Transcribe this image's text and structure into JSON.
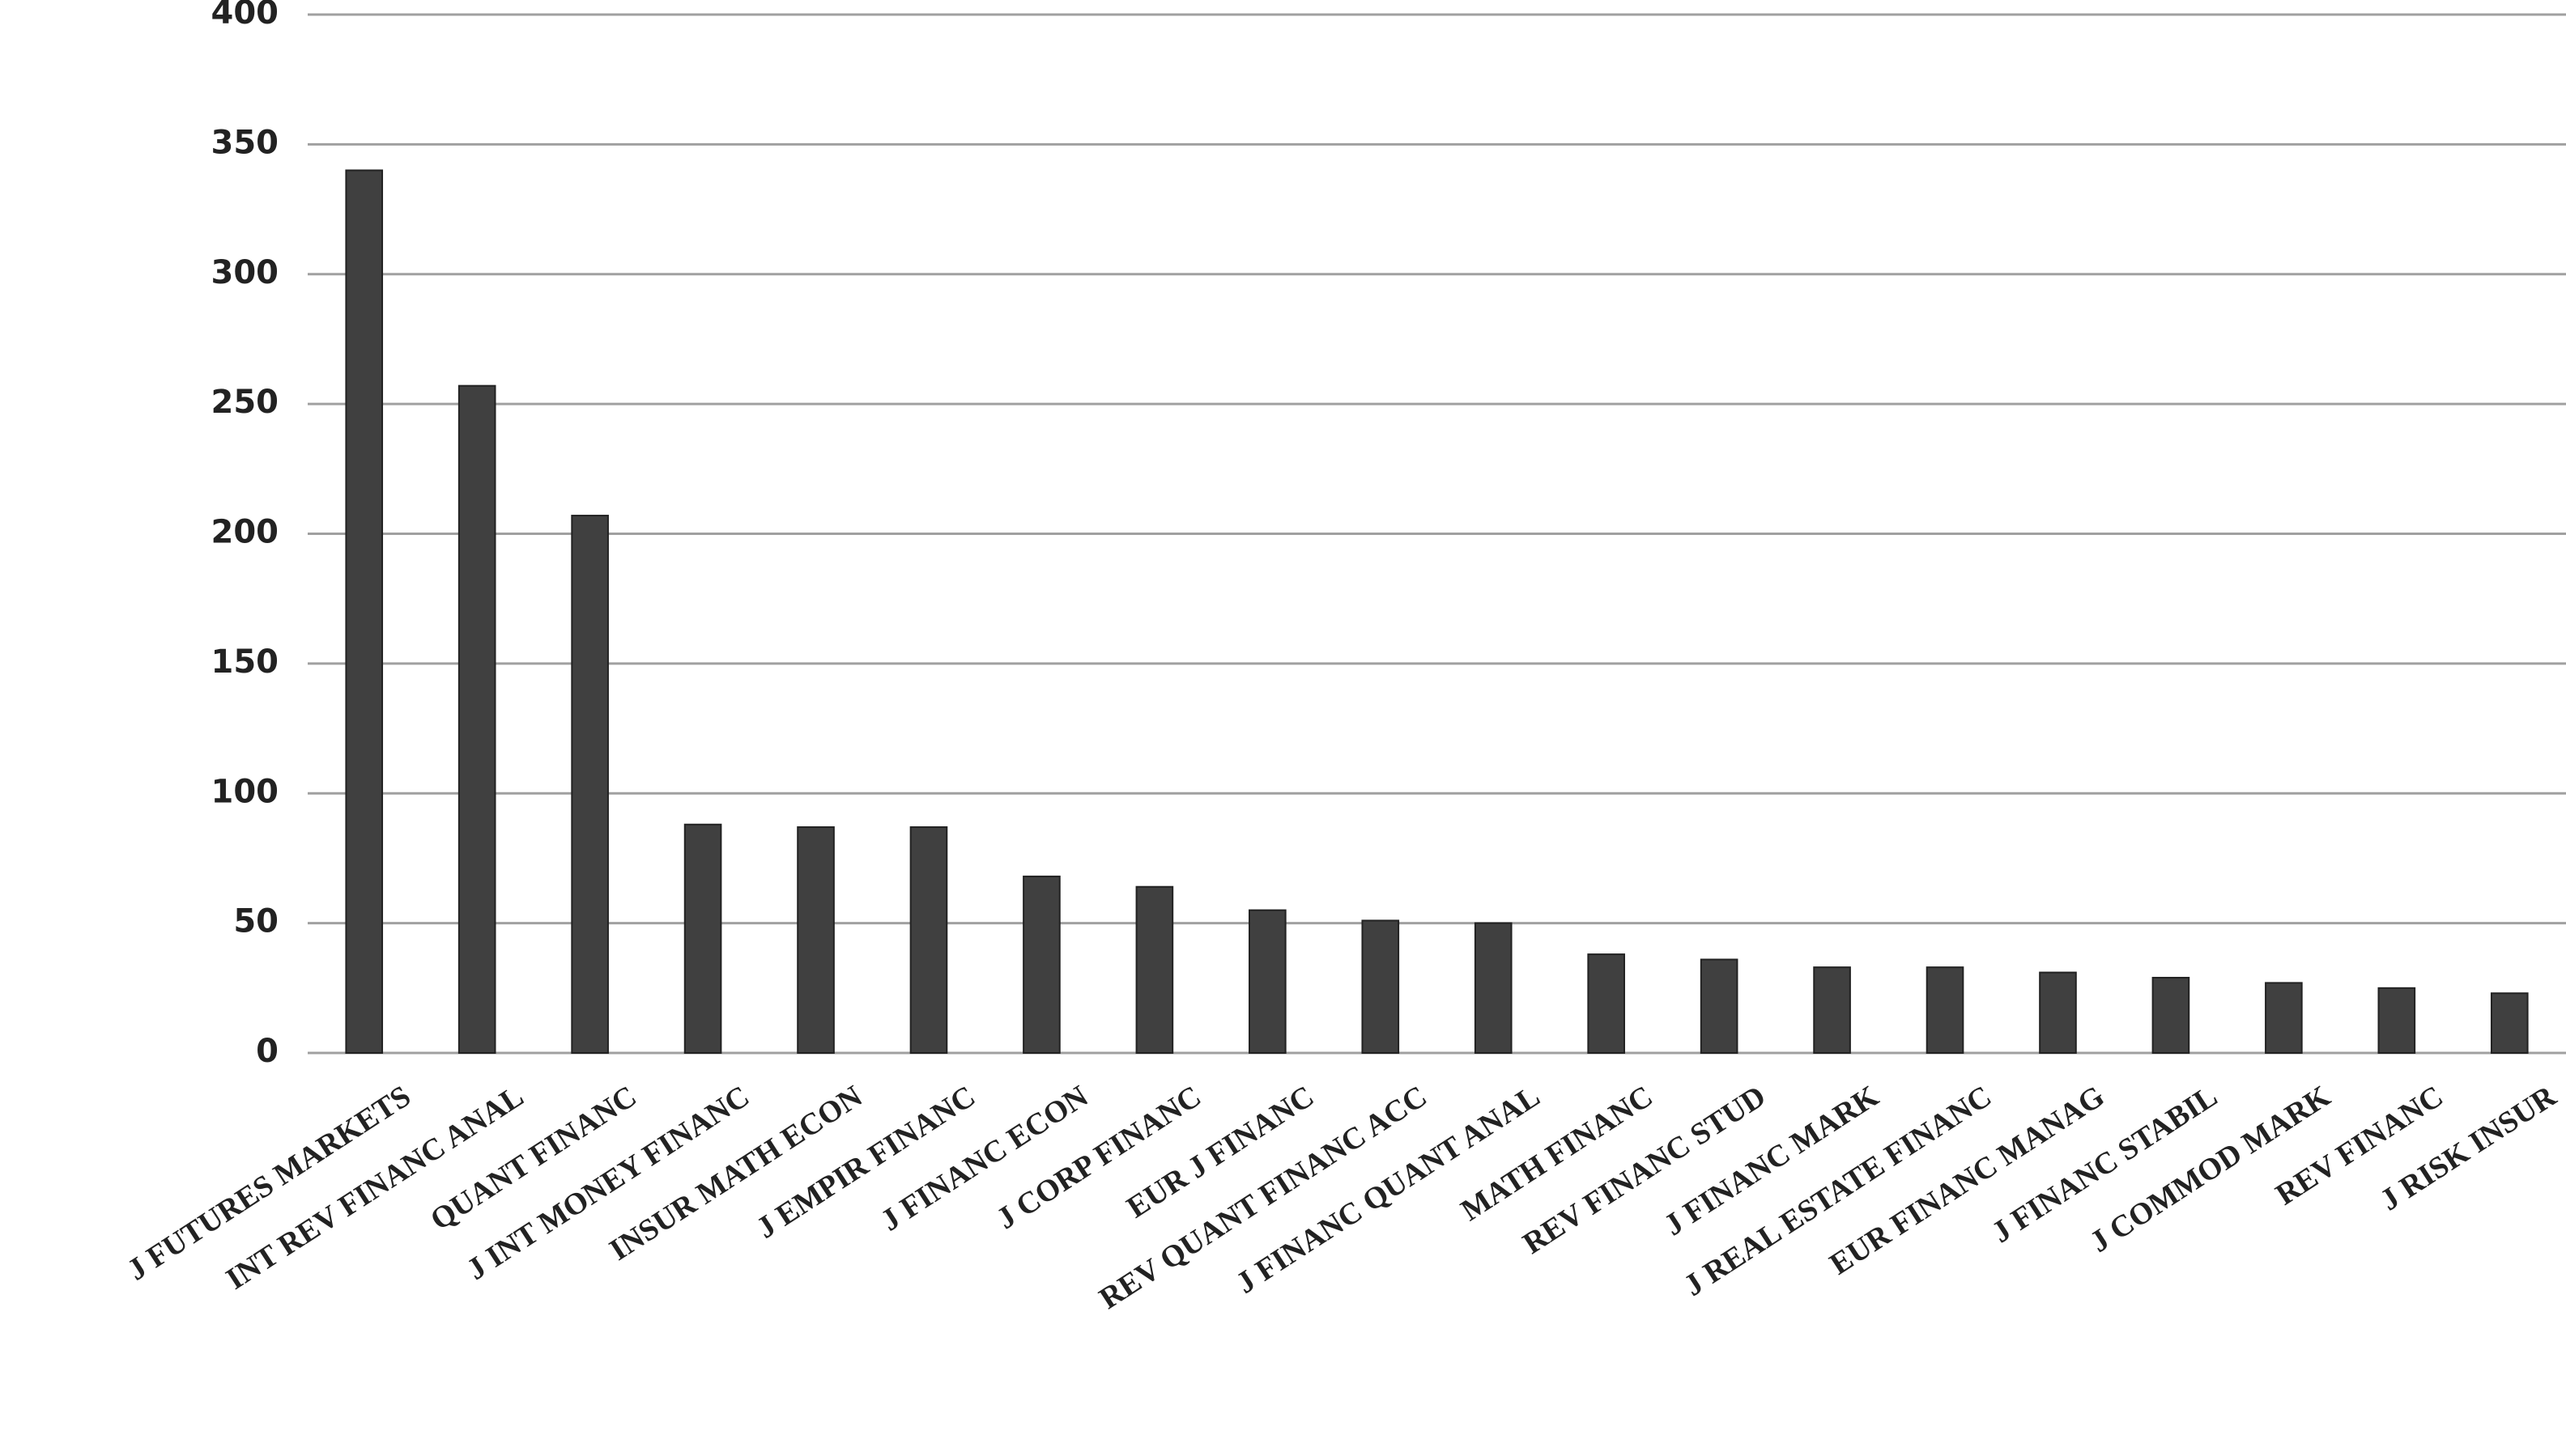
{
  "chart_data": {
    "type": "bar",
    "categories": [
      "J FUTURES MARKETS",
      "INT REV FINANC ANAL",
      "QUANT FINANC",
      "J INT MONEY FINANC",
      "INSUR MATH ECON",
      "J EMPIR FINANC",
      "J FINANC ECON",
      "J CORP FINANC",
      "EUR J FINANC",
      "REV QUANT FINANC ACC",
      "J FINANC QUANT ANAL",
      "MATH FINANC",
      "REV FINANC STUD",
      "J FINANC MARK",
      "J REAL ESTATE FINANC",
      "EUR FINANC MANAG",
      "J FINANC STABIL",
      "J COMMOD MARK",
      "REV FINANC",
      "J RISK INSUR"
    ],
    "values": [
      340,
      257,
      207,
      88,
      87,
      87,
      68,
      64,
      55,
      51,
      50,
      38,
      36,
      33,
      33,
      31,
      29,
      27,
      25,
      23
    ],
    "color": "#404040",
    "ylim": [
      0,
      400
    ],
    "yticks": [
      0,
      50,
      100,
      150,
      200,
      250,
      300,
      350,
      400
    ],
    "grid": true
  }
}
